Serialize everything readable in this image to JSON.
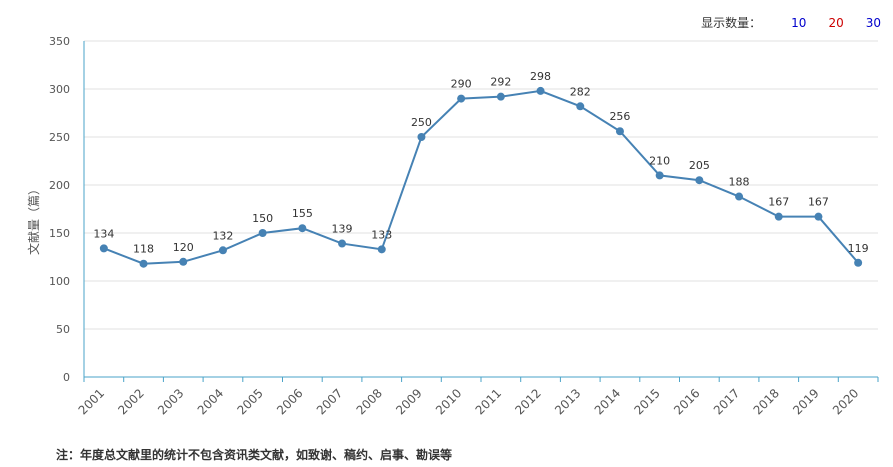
{
  "controls": {
    "count_label": "显示数量：",
    "options": [
      {
        "label": "10",
        "color": "#0000cc"
      },
      {
        "label": "20",
        "color": "#cc0000"
      },
      {
        "label": "30",
        "color": "#0000cc"
      }
    ]
  },
  "footnote": "注：年度总文献里的统计不包含资讯类文献，如致谢、稿约、启事、勘误等",
  "chart_data": {
    "type": "line",
    "ylabel": "文献量（篇）",
    "xlabel": "",
    "ylim": [
      0,
      350
    ],
    "yticks": [
      0,
      50,
      100,
      150,
      200,
      250,
      300,
      350
    ],
    "grid": true,
    "categories": [
      "2001",
      "2002",
      "2003",
      "2004",
      "2005",
      "2006",
      "2007",
      "2008",
      "2009",
      "2010",
      "2011",
      "2012",
      "2013",
      "2014",
      "2015",
      "2016",
      "2017",
      "2018",
      "2019",
      "2020"
    ],
    "series": [
      {
        "values": [
          134,
          118,
          120,
          132,
          150,
          155,
          139,
          133,
          250,
          290,
          292,
          298,
          282,
          256,
          210,
          205,
          188,
          167,
          167,
          119
        ]
      }
    ],
    "colors": {
      "line": "#4682b4",
      "axis": "#4aa3c8",
      "grid": "#e2e2e2",
      "text": "#555555"
    }
  }
}
